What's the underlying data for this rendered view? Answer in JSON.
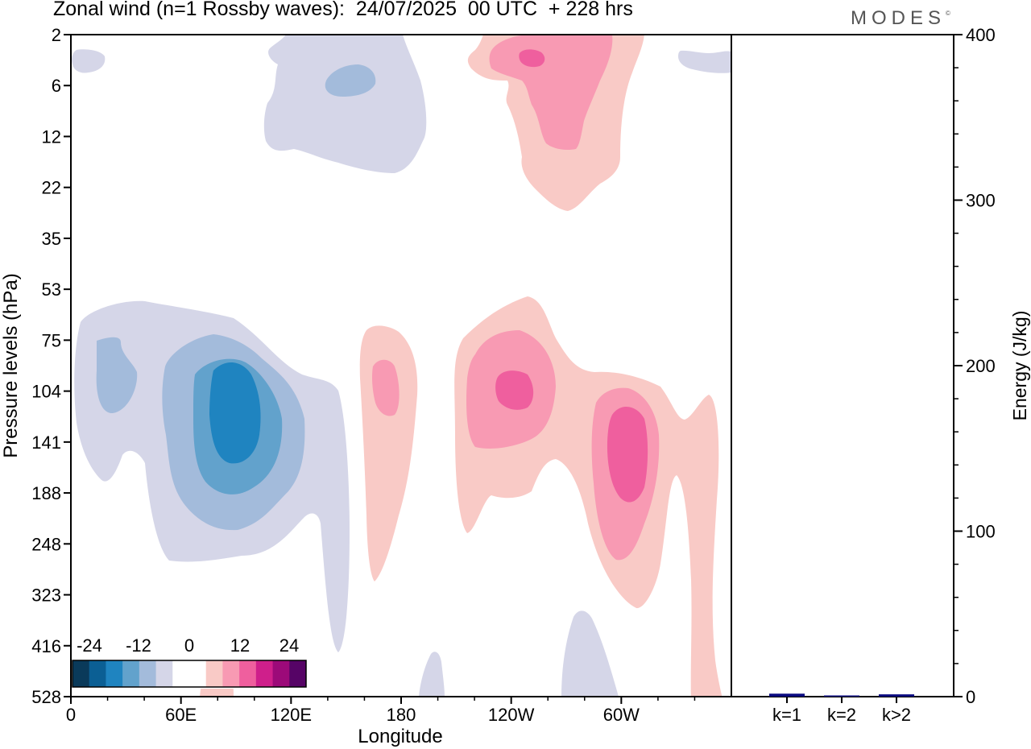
{
  "title": "Zonal wind (n=1 Rossby waves):  24/07/2025  00 UTC  + 228 hrs",
  "brand": {
    "name": "MODES",
    "mark": "©"
  },
  "colors": {
    "neg": [
      "#0a3a5a",
      "#0b5f94",
      "#1f84c0",
      "#62a2cc",
      "#a3bbdb",
      "#d5d6e8"
    ],
    "zero": "#ffffff",
    "pos": [
      "#f9cac6",
      "#f89ab3",
      "#ef5f9e",
      "#cf1f8b",
      "#9c0a79",
      "#560466"
    ],
    "bar": "#0a0a80"
  },
  "chart_data": [
    {
      "type": "heatmap",
      "title": "Zonal wind (n=1 Rossby waves)",
      "xlabel": "Longitude",
      "ylabel": "Pressure levels (hPa)",
      "x_ticks": [
        "0",
        "60E",
        "120E",
        "180",
        "120W",
        "60W"
      ],
      "y_ticks": [
        "2",
        "6",
        "12",
        "22",
        "35",
        "53",
        "75",
        "104",
        "141",
        "188",
        "248",
        "323",
        "416",
        "528"
      ],
      "colorbar_labels": [
        "-24",
        "-12",
        "0",
        "12",
        "24"
      ],
      "levels": [
        -24,
        -20,
        -16,
        -12,
        -8,
        -4,
        0,
        4,
        8,
        12,
        16,
        20,
        24
      ],
      "features": [
        {
          "lon": 97,
          "p": 141,
          "value": -22,
          "label": "strong negative core"
        },
        {
          "lon": 23,
          "p": 104,
          "value": -8,
          "label": "weak negative lobe"
        },
        {
          "lon": 148,
          "p": 6,
          "value": -8,
          "label": "upper negative cell"
        },
        {
          "lon": 236,
          "p": 104,
          "value": 16,
          "label": "positive core"
        },
        {
          "lon": 292,
          "p": 141,
          "value": 16,
          "label": "positive core"
        },
        {
          "lon": 174,
          "p": 104,
          "value": 8,
          "label": "positive lobe"
        },
        {
          "lon": 252,
          "p": 4,
          "value": 16,
          "label": "upper positive cell"
        }
      ]
    },
    {
      "type": "bar",
      "categories": [
        "k=1",
        "k=2",
        "k>2"
      ],
      "values": [
        1.8,
        0.4,
        1.4
      ],
      "ylabel": "Energy (J/kg)",
      "ylim": [
        0,
        400
      ],
      "y_ticks": [
        "0",
        "100",
        "200",
        "300",
        "400"
      ]
    }
  ]
}
